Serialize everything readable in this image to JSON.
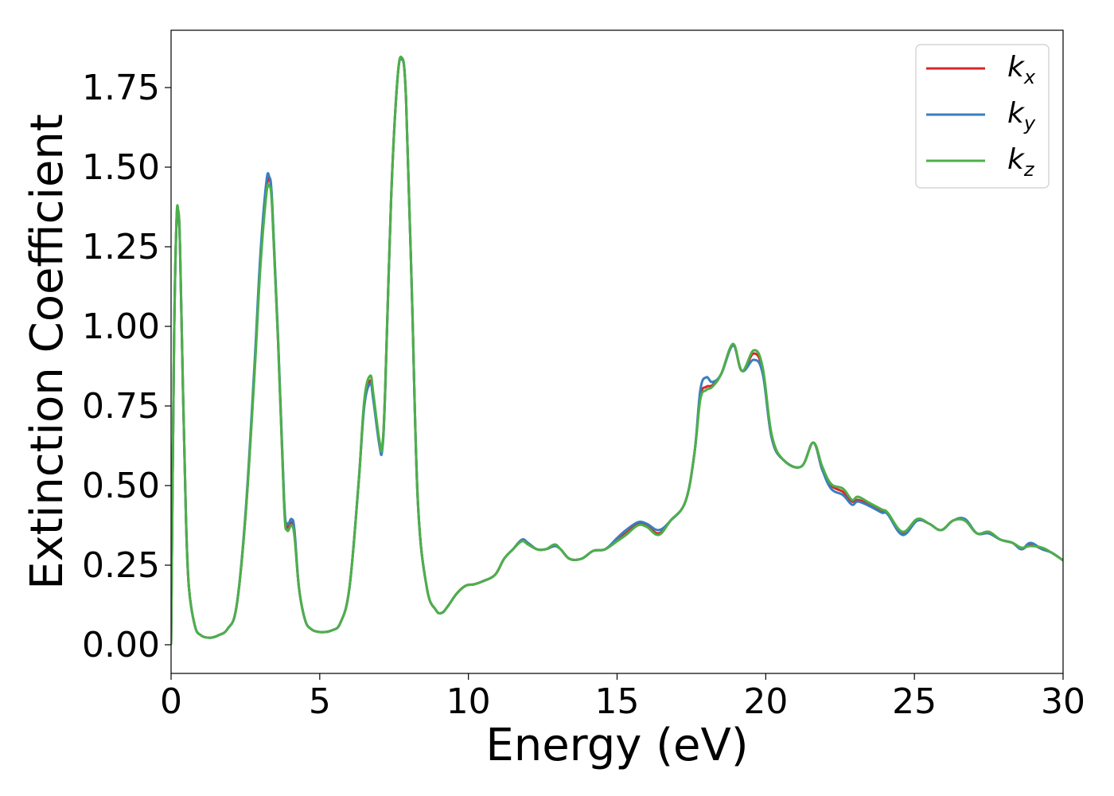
{
  "chart_data": {
    "type": "line",
    "xlabel": "Energy (eV)",
    "ylabel": "Extinction Coefficient",
    "xlim": [
      0,
      30
    ],
    "ylim": [
      -0.09,
      1.93
    ],
    "xticks": [
      0,
      5,
      10,
      15,
      20,
      25,
      30
    ],
    "xtick_labels": [
      "0",
      "5",
      "10",
      "15",
      "20",
      "25",
      "30"
    ],
    "yticks": [
      0.0,
      0.25,
      0.5,
      0.75,
      1.0,
      1.25,
      1.5,
      1.75
    ],
    "ytick_labels": [
      "0.00",
      "0.25",
      "0.50",
      "0.75",
      "1.00",
      "1.25",
      "1.50",
      "1.75"
    ],
    "grid": false,
    "legend_position": "top-right",
    "series": [
      {
        "name": "k",
        "subscript": "x",
        "color": "#d62728",
        "x": [
          0,
          0.1,
          0.18,
          0.24,
          0.3,
          0.4,
          0.5,
          0.6,
          0.8,
          1.0,
          1.3,
          1.6,
          1.9,
          2.2,
          2.5,
          2.8,
          3.0,
          3.2,
          3.3,
          3.4,
          3.6,
          3.8,
          3.9,
          4.05,
          4.15,
          4.3,
          4.5,
          4.7,
          5.0,
          5.4,
          5.7,
          6.0,
          6.3,
          6.5,
          6.7,
          6.8,
          7.0,
          7.1,
          7.2,
          7.4,
          7.6,
          7.75,
          7.9,
          8.1,
          8.3,
          8.6,
          8.9,
          9.1,
          9.3,
          9.6,
          9.9,
          10.2,
          10.5,
          10.9,
          11.2,
          11.5,
          11.8,
          12.0,
          12.3,
          12.6,
          12.9,
          13.1,
          13.4,
          13.8,
          14.2,
          14.6,
          15.0,
          15.3,
          15.7,
          16.0,
          16.4,
          16.8,
          17.3,
          17.6,
          17.8,
          18.0,
          18.2,
          18.5,
          18.9,
          19.2,
          19.6,
          19.9,
          20.2,
          20.6,
          21.2,
          21.6,
          21.9,
          22.2,
          22.6,
          22.9,
          23.1,
          23.5,
          23.9,
          24.1,
          24.6,
          25.1,
          25.5,
          25.9,
          26.3,
          26.7,
          27.1,
          27.5,
          27.9,
          28.3,
          28.6,
          28.9,
          29.3,
          29.6,
          30.0
        ],
        "y": [
          0.0,
          0.95,
          1.32,
          1.36,
          1.25,
          0.8,
          0.4,
          0.18,
          0.06,
          0.03,
          0.022,
          0.03,
          0.05,
          0.12,
          0.4,
          0.85,
          1.2,
          1.42,
          1.46,
          1.38,
          0.95,
          0.45,
          0.37,
          0.385,
          0.35,
          0.18,
          0.08,
          0.05,
          0.04,
          0.045,
          0.07,
          0.18,
          0.5,
          0.76,
          0.83,
          0.78,
          0.64,
          0.62,
          0.8,
          1.4,
          1.76,
          1.84,
          1.72,
          1.1,
          0.45,
          0.18,
          0.11,
          0.1,
          0.12,
          0.16,
          0.185,
          0.19,
          0.2,
          0.22,
          0.27,
          0.3,
          0.33,
          0.32,
          0.3,
          0.3,
          0.31,
          0.3,
          0.27,
          0.27,
          0.295,
          0.3,
          0.33,
          0.35,
          0.38,
          0.375,
          0.35,
          0.39,
          0.45,
          0.6,
          0.78,
          0.81,
          0.815,
          0.85,
          0.94,
          0.86,
          0.915,
          0.86,
          0.65,
          0.58,
          0.56,
          0.635,
          0.55,
          0.5,
          0.48,
          0.45,
          0.455,
          0.44,
          0.42,
          0.41,
          0.35,
          0.39,
          0.38,
          0.36,
          0.39,
          0.39,
          0.35,
          0.35,
          0.33,
          0.32,
          0.3,
          0.315,
          0.3,
          0.29,
          0.265
        ]
      },
      {
        "name": "k",
        "subscript": "y",
        "color": "#3a7ebf",
        "x": [
          0,
          0.1,
          0.18,
          0.24,
          0.3,
          0.4,
          0.5,
          0.6,
          0.8,
          1.0,
          1.3,
          1.6,
          1.9,
          2.2,
          2.5,
          2.8,
          3.0,
          3.2,
          3.3,
          3.4,
          3.6,
          3.8,
          3.9,
          4.05,
          4.15,
          4.3,
          4.5,
          4.7,
          5.0,
          5.4,
          5.7,
          6.0,
          6.3,
          6.5,
          6.7,
          6.8,
          7.0,
          7.1,
          7.2,
          7.4,
          7.6,
          7.75,
          7.9,
          8.1,
          8.3,
          8.6,
          8.9,
          9.1,
          9.3,
          9.6,
          9.9,
          10.2,
          10.5,
          10.9,
          11.2,
          11.5,
          11.8,
          12.0,
          12.3,
          12.6,
          12.9,
          13.1,
          13.4,
          13.8,
          14.2,
          14.6,
          15.0,
          15.3,
          15.7,
          16.0,
          16.4,
          16.8,
          17.3,
          17.6,
          17.8,
          18.0,
          18.2,
          18.5,
          18.9,
          19.2,
          19.6,
          19.9,
          20.2,
          20.6,
          21.2,
          21.6,
          21.9,
          22.2,
          22.6,
          22.9,
          23.1,
          23.5,
          23.9,
          24.1,
          24.6,
          25.1,
          25.5,
          25.9,
          26.3,
          26.7,
          27.1,
          27.5,
          27.9,
          28.3,
          28.6,
          28.9,
          29.3,
          29.6,
          30.0
        ],
        "y": [
          0.0,
          0.95,
          1.32,
          1.36,
          1.25,
          0.8,
          0.4,
          0.18,
          0.06,
          0.03,
          0.022,
          0.03,
          0.05,
          0.12,
          0.41,
          0.87,
          1.22,
          1.45,
          1.47,
          1.39,
          0.96,
          0.46,
          0.38,
          0.395,
          0.36,
          0.18,
          0.08,
          0.05,
          0.04,
          0.045,
          0.07,
          0.18,
          0.5,
          0.75,
          0.82,
          0.77,
          0.63,
          0.61,
          0.79,
          1.4,
          1.76,
          1.84,
          1.72,
          1.1,
          0.45,
          0.18,
          0.11,
          0.1,
          0.12,
          0.16,
          0.185,
          0.19,
          0.2,
          0.22,
          0.27,
          0.3,
          0.33,
          0.32,
          0.3,
          0.3,
          0.31,
          0.3,
          0.27,
          0.27,
          0.295,
          0.3,
          0.335,
          0.36,
          0.385,
          0.38,
          0.36,
          0.39,
          0.45,
          0.6,
          0.8,
          0.84,
          0.825,
          0.85,
          0.94,
          0.86,
          0.895,
          0.85,
          0.65,
          0.58,
          0.56,
          0.635,
          0.55,
          0.49,
          0.47,
          0.44,
          0.45,
          0.435,
          0.415,
          0.41,
          0.345,
          0.39,
          0.38,
          0.36,
          0.39,
          0.395,
          0.35,
          0.35,
          0.33,
          0.32,
          0.3,
          0.32,
          0.3,
          0.29,
          0.265
        ]
      },
      {
        "name": "k",
        "subscript": "z",
        "color": "#4daf4a",
        "x": [
          0,
          0.1,
          0.18,
          0.24,
          0.3,
          0.4,
          0.5,
          0.6,
          0.8,
          1.0,
          1.3,
          1.6,
          1.9,
          2.2,
          2.5,
          2.8,
          3.0,
          3.2,
          3.3,
          3.4,
          3.6,
          3.8,
          3.9,
          4.05,
          4.15,
          4.3,
          4.5,
          4.7,
          5.0,
          5.4,
          5.7,
          6.0,
          6.3,
          6.5,
          6.7,
          6.8,
          7.0,
          7.1,
          7.2,
          7.4,
          7.6,
          7.75,
          7.9,
          8.1,
          8.3,
          8.6,
          8.9,
          9.1,
          9.3,
          9.6,
          9.9,
          10.2,
          10.5,
          10.9,
          11.2,
          11.5,
          11.8,
          12.0,
          12.3,
          12.6,
          12.9,
          13.1,
          13.4,
          13.8,
          14.2,
          14.6,
          15.0,
          15.3,
          15.7,
          16.0,
          16.4,
          16.8,
          17.3,
          17.6,
          17.8,
          18.0,
          18.2,
          18.5,
          18.9,
          19.2,
          19.6,
          19.9,
          20.2,
          20.6,
          21.2,
          21.6,
          21.9,
          22.2,
          22.6,
          22.9,
          23.1,
          23.5,
          23.9,
          24.1,
          24.6,
          25.1,
          25.5,
          25.9,
          26.3,
          26.7,
          27.1,
          27.5,
          27.9,
          28.3,
          28.6,
          28.9,
          29.3,
          29.6,
          30.0
        ],
        "y": [
          0.0,
          0.95,
          1.33,
          1.365,
          1.26,
          0.8,
          0.4,
          0.18,
          0.06,
          0.03,
          0.022,
          0.03,
          0.05,
          0.12,
          0.4,
          0.84,
          1.18,
          1.41,
          1.44,
          1.37,
          0.95,
          0.44,
          0.36,
          0.375,
          0.34,
          0.18,
          0.08,
          0.05,
          0.04,
          0.045,
          0.07,
          0.18,
          0.5,
          0.77,
          0.845,
          0.79,
          0.645,
          0.62,
          0.8,
          1.4,
          1.76,
          1.845,
          1.72,
          1.1,
          0.45,
          0.18,
          0.11,
          0.1,
          0.12,
          0.16,
          0.185,
          0.19,
          0.2,
          0.22,
          0.27,
          0.3,
          0.325,
          0.315,
          0.3,
          0.3,
          0.315,
          0.3,
          0.27,
          0.27,
          0.295,
          0.3,
          0.325,
          0.345,
          0.375,
          0.37,
          0.345,
          0.39,
          0.45,
          0.6,
          0.77,
          0.8,
          0.81,
          0.85,
          0.945,
          0.86,
          0.925,
          0.87,
          0.66,
          0.58,
          0.56,
          0.635,
          0.56,
          0.505,
          0.49,
          0.455,
          0.465,
          0.445,
          0.425,
          0.415,
          0.355,
          0.395,
          0.38,
          0.36,
          0.39,
          0.39,
          0.35,
          0.355,
          0.33,
          0.32,
          0.305,
          0.31,
          0.305,
          0.29,
          0.265
        ]
      }
    ]
  }
}
